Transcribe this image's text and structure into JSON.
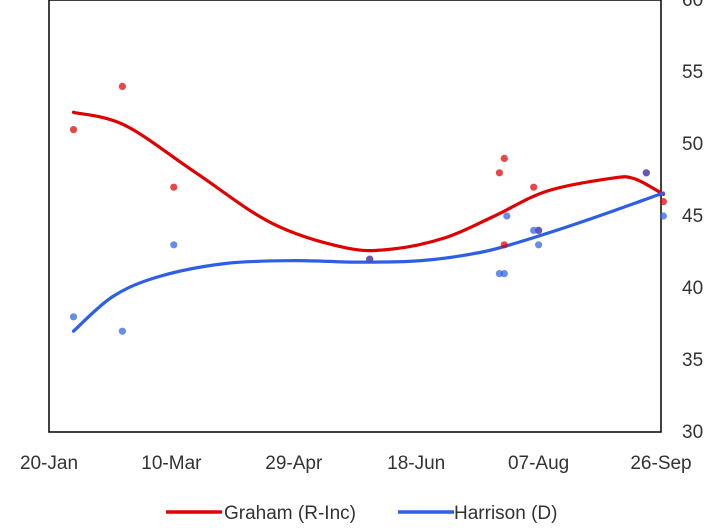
{
  "chart_data": {
    "type": "scatter",
    "title": "",
    "xlabel": "",
    "ylabel": "",
    "x_axis": {
      "type": "date",
      "min": "2020-01-20",
      "max": "2020-09-26",
      "tick_dates": [
        "2020-01-20",
        "2020-03-10",
        "2020-04-29",
        "2020-06-18",
        "2020-08-07",
        "2020-09-26"
      ],
      "tick_labels": [
        "20-Jan",
        "10-Mar",
        "29-Apr",
        "18-Jun",
        "07-Aug",
        "26-Sep"
      ]
    },
    "y_axis": {
      "position": "right",
      "min": 30,
      "max": 60,
      "ticks": [
        30,
        35,
        40,
        45,
        50,
        55,
        60
      ],
      "tick_labels": [
        "30",
        "35",
        "40",
        "45",
        "50",
        "55",
        "60"
      ]
    },
    "grid": false,
    "legend_position": "bottom",
    "series": [
      {
        "name": "Graham (R-Inc)",
        "color": "#e00000",
        "points": [
          [
            "2020-01-30",
            51
          ],
          [
            "2020-02-19",
            54
          ],
          [
            "2020-03-11",
            47
          ],
          [
            "2020-05-30",
            42
          ],
          [
            "2020-07-22",
            48
          ],
          [
            "2020-07-24",
            49
          ],
          [
            "2020-07-24",
            43
          ],
          [
            "2020-08-05",
            47
          ],
          [
            "2020-08-07",
            44
          ],
          [
            "2020-09-20",
            48
          ],
          [
            "2020-09-27",
            46
          ]
        ],
        "trend": [
          [
            "2020-01-30",
            52.2
          ],
          [
            "2020-02-20",
            51.3
          ],
          [
            "2020-03-20",
            48.0
          ],
          [
            "2020-04-20",
            44.5
          ],
          [
            "2020-05-20",
            42.8
          ],
          [
            "2020-06-08",
            42.7
          ],
          [
            "2020-06-30",
            43.5
          ],
          [
            "2020-07-20",
            45.0
          ],
          [
            "2020-08-10",
            46.7
          ],
          [
            "2020-09-05",
            47.6
          ],
          [
            "2020-09-15",
            47.6
          ],
          [
            "2020-09-27",
            46.5
          ]
        ]
      },
      {
        "name": "Harrison (D)",
        "color": "#2d5fe6",
        "points": [
          [
            "2020-01-30",
            38
          ],
          [
            "2020-02-19",
            37
          ],
          [
            "2020-03-11",
            43
          ],
          [
            "2020-05-30",
            42
          ],
          [
            "2020-07-22",
            41
          ],
          [
            "2020-07-24",
            41
          ],
          [
            "2020-07-25",
            45
          ],
          [
            "2020-08-05",
            44
          ],
          [
            "2020-08-07",
            43
          ],
          [
            "2020-08-07",
            44
          ],
          [
            "2020-09-20",
            48
          ],
          [
            "2020-09-27",
            45
          ]
        ],
        "trend": [
          [
            "2020-01-30",
            37.0
          ],
          [
            "2020-02-15",
            39.4
          ],
          [
            "2020-03-05",
            40.8
          ],
          [
            "2020-04-01",
            41.7
          ],
          [
            "2020-04-29",
            41.9
          ],
          [
            "2020-05-25",
            41.8
          ],
          [
            "2020-06-20",
            41.9
          ],
          [
            "2020-07-15",
            42.5
          ],
          [
            "2020-08-05",
            43.5
          ],
          [
            "2020-08-30",
            44.9
          ],
          [
            "2020-09-27",
            46.6
          ]
        ]
      }
    ]
  }
}
